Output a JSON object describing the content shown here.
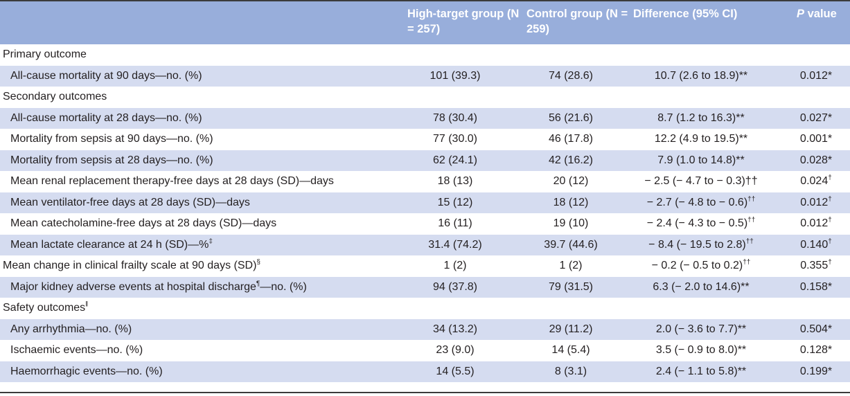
{
  "header": {
    "col1": "High-target group (N = 257)",
    "col2": "Control group (N = 259)",
    "col3": "Difference (95% CI)",
    "col4_italic": "P",
    "col4_rest": " value"
  },
  "rows": [
    {
      "label": "Primary outcome",
      "sup": "",
      "suffix": "",
      "v1": "",
      "v2": "",
      "v3": "",
      "v3sup": "",
      "v4": "",
      "v4sup": ""
    },
    {
      "label": "All-cause mortality at 90 days—no. (%)",
      "sup": "",
      "suffix": "",
      "v1": "101 (39.3)",
      "v2": "74 (28.6)",
      "v3": "10.7 (2.6 to 18.9)**",
      "v3sup": "",
      "v4": "0.012*",
      "v4sup": ""
    },
    {
      "label": "Secondary outcomes",
      "sup": "",
      "suffix": "",
      "v1": "",
      "v2": "",
      "v3": "",
      "v3sup": "",
      "v4": "",
      "v4sup": ""
    },
    {
      "label": "All-cause mortality at 28 days—no. (%)",
      "sup": "",
      "suffix": "",
      "v1": "78 (30.4)",
      "v2": "56 (21.6)",
      "v3": "8.7 (1.2 to 16.3)**",
      "v3sup": "",
      "v4": "0.027*",
      "v4sup": ""
    },
    {
      "label": "Mortality from sepsis at 90 days—no. (%)",
      "sup": "",
      "suffix": "",
      "v1": "77 (30.0)",
      "v2": "46 (17.8)",
      "v3": "12.2 (4.9 to 19.5)**",
      "v3sup": "",
      "v4": "0.001*",
      "v4sup": ""
    },
    {
      "label": "Mortality from sepsis at 28 days—no. (%)",
      "sup": "",
      "suffix": "",
      "v1": "62 (24.1)",
      "v2": "42 (16.2)",
      "v3": "7.9 (1.0 to 14.8)**",
      "v3sup": "",
      "v4": "0.028*",
      "v4sup": ""
    },
    {
      "label": "Mean renal replacement therapy-free days at 28 days (SD)—days",
      "sup": "",
      "suffix": "",
      "v1": "18 (13)",
      "v2": "20 (12)",
      "v3": "− 2.5 (− 4.7 to − 0.3)††",
      "v3sup": "",
      "v4": "0.024",
      "v4sup": "†"
    },
    {
      "label": "Mean ventilator-free days at 28 days (SD)—days",
      "sup": "",
      "suffix": "",
      "v1": "15 (12)",
      "v2": "18 (12)",
      "v3": "− 2.7 (− 4.8 to − 0.6)",
      "v3sup": "††",
      "v4": "0.012",
      "v4sup": "†"
    },
    {
      "label": "Mean catecholamine-free days at 28 days (SD)—days",
      "sup": "",
      "suffix": "",
      "v1": "16 (11)",
      "v2": "19 (10)",
      "v3": "− 2.4 (− 4.3 to − 0.5)",
      "v3sup": "††",
      "v4": "0.012",
      "v4sup": "†"
    },
    {
      "label": "Mean lactate clearance at 24 h (SD)—%",
      "sup": "‡",
      "suffix": "",
      "v1": "31.4 (74.2)",
      "v2": "39.7 (44.6)",
      "v3": "− 8.4 (− 19.5 to 2.8)",
      "v3sup": "††",
      "v4": "0.140",
      "v4sup": "†"
    },
    {
      "label": "Mean change in clinical frailty scale at 90 days (SD)",
      "sup": "§",
      "suffix": "",
      "v1": "1 (2)",
      "v2": "1 (2)",
      "v3": "− 0.2 (− 0.5 to 0.2)",
      "v3sup": "††",
      "v4": "0.355",
      "v4sup": "†"
    },
    {
      "label": "Major kidney adverse events at hospital discharge",
      "sup": "¶",
      "suffix": "—no. (%)",
      "v1": "94 (37.8)",
      "v2": "79 (31.5)",
      "v3": "6.3 (− 2.0 to 14.6)**",
      "v3sup": "",
      "v4": "0.158*",
      "v4sup": ""
    },
    {
      "label": "Safety outcomes",
      "sup": "‖",
      "suffix": "",
      "v1": "",
      "v2": "",
      "v3": "",
      "v3sup": "",
      "v4": "",
      "v4sup": ""
    },
    {
      "label": "Any arrhythmia—no. (%)",
      "sup": "",
      "suffix": "",
      "v1": "34 (13.2)",
      "v2": "29 (11.2)",
      "v3": "2.0 (− 3.6 to 7.7)**",
      "v3sup": "",
      "v4": "0.504*",
      "v4sup": ""
    },
    {
      "label": "Ischaemic events—no. (%)",
      "sup": "",
      "suffix": "",
      "v1": "23 (9.0)",
      "v2": "14 (5.4)",
      "v3": "3.5 (− 0.9 to 8.0)**",
      "v3sup": "",
      "v4": "0.128*",
      "v4sup": ""
    },
    {
      "label": "Haemorrhagic events—no. (%)",
      "sup": "",
      "suffix": "",
      "v1": "14 (5.5)",
      "v2": "8 (3.1)",
      "v3": "2.4 (− 1.1 to 5.8)**",
      "v3sup": "",
      "v4": "0.199*",
      "v4sup": ""
    }
  ]
}
